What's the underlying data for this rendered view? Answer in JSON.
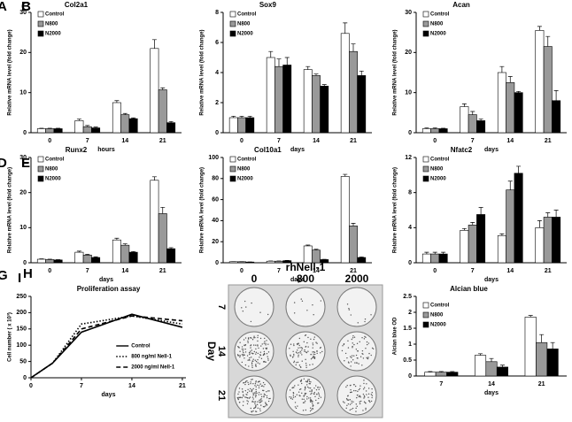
{
  "chart_data": [
    {
      "type": "bar",
      "label": "A",
      "title": "Col2a1",
      "xlabel": "hours",
      "ylabel": "Relative mRNA level (fold change)",
      "categories": [
        "0",
        "7",
        "14",
        "21"
      ],
      "ylim": [
        0,
        30
      ],
      "yticks": [
        0,
        10,
        20,
        30
      ],
      "series": [
        {
          "name": "Control",
          "color": "#ffffff",
          "values": [
            1,
            3,
            7.5,
            21
          ],
          "errors": [
            0.1,
            0.4,
            0.5,
            2.2
          ]
        },
        {
          "name": "N800",
          "color": "#999999",
          "values": [
            1,
            1.5,
            4.5,
            10.7
          ],
          "errors": [
            0.1,
            0.3,
            0.3,
            0.5
          ]
        },
        {
          "name": "N2000",
          "color": "#000000",
          "values": [
            1,
            1.2,
            3.5,
            2.5
          ],
          "errors": [
            0.1,
            0.2,
            0.2,
            0.3
          ]
        }
      ]
    },
    {
      "type": "bar",
      "label": "B",
      "title": "Sox9",
      "xlabel": "days",
      "ylabel": "Relative mRNA level (fold change)",
      "categories": [
        "0",
        "7",
        "14",
        "21"
      ],
      "ylim": [
        0,
        8
      ],
      "yticks": [
        0,
        2,
        4,
        6,
        8
      ],
      "series": [
        {
          "name": "Control",
          "color": "#ffffff",
          "values": [
            1,
            5,
            4.2,
            6.6
          ],
          "errors": [
            0.1,
            0.4,
            0.2,
            0.7
          ]
        },
        {
          "name": "N800",
          "color": "#999999",
          "values": [
            1,
            4.4,
            3.8,
            5.4
          ],
          "errors": [
            0.1,
            0.5,
            0.1,
            0.5
          ]
        },
        {
          "name": "N2000",
          "color": "#000000",
          "values": [
            1,
            4.5,
            3.1,
            3.8
          ],
          "errors": [
            0.1,
            0.5,
            0.1,
            0.3
          ]
        }
      ]
    },
    {
      "type": "bar",
      "label": "C",
      "title": "Acan",
      "xlabel": "days",
      "ylabel": "Relative mRNA level (fold change)",
      "categories": [
        "0",
        "7",
        "14",
        "21"
      ],
      "ylim": [
        0,
        30
      ],
      "yticks": [
        0,
        10,
        20,
        30
      ],
      "series": [
        {
          "name": "Control",
          "color": "#ffffff",
          "values": [
            1,
            6.5,
            15,
            25.5
          ],
          "errors": [
            0.2,
            0.7,
            1.5,
            1
          ]
        },
        {
          "name": "N800",
          "color": "#999999",
          "values": [
            1,
            4.5,
            12.5,
            21.5
          ],
          "errors": [
            0.2,
            0.8,
            1.5,
            2.5
          ]
        },
        {
          "name": "N2000",
          "color": "#000000",
          "values": [
            1,
            3,
            10,
            8
          ],
          "errors": [
            0.1,
            0.4,
            0.3,
            2.5
          ]
        }
      ]
    },
    {
      "type": "bar",
      "label": "D",
      "title": "Runx2",
      "xlabel": "days",
      "ylabel": "Relative mRNA level (fold change)",
      "categories": [
        "0",
        "7",
        "14",
        "21"
      ],
      "ylim": [
        0,
        30
      ],
      "yticks": [
        0,
        10,
        20,
        30
      ],
      "series": [
        {
          "name": "Control",
          "color": "#ffffff",
          "values": [
            1,
            3,
            6.5,
            23.5
          ],
          "errors": [
            0.1,
            0.3,
            0.5,
            1
          ]
        },
        {
          "name": "N800",
          "color": "#999999",
          "values": [
            0.9,
            2.2,
            5,
            14
          ],
          "errors": [
            0.1,
            0.2,
            0.4,
            1.8
          ]
        },
        {
          "name": "N2000",
          "color": "#000000",
          "values": [
            0.8,
            1.5,
            3,
            4
          ],
          "errors": [
            0.1,
            0.2,
            0.2,
            0.3
          ]
        }
      ]
    },
    {
      "type": "bar",
      "label": "E",
      "title": "Col10a1",
      "xlabel": "days",
      "ylabel": "Relative mRNA level (fold change)",
      "categories": [
        "0",
        "7",
        "14",
        "21"
      ],
      "ylim": [
        0,
        100
      ],
      "yticks": [
        0,
        20,
        40,
        60,
        80,
        100
      ],
      "series": [
        {
          "name": "Control",
          "color": "#ffffff",
          "values": [
            1,
            1.5,
            16,
            82
          ],
          "errors": [
            0.1,
            0.2,
            0.8,
            2
          ]
        },
        {
          "name": "N800",
          "color": "#999999",
          "values": [
            1,
            1.5,
            12,
            35
          ],
          "errors": [
            0.1,
            0.2,
            0.8,
            2.5
          ]
        },
        {
          "name": "N2000",
          "color": "#000000",
          "values": [
            0.7,
            2,
            3,
            5
          ],
          "errors": [
            0.1,
            0.2,
            0.3,
            0.5
          ]
        }
      ]
    },
    {
      "type": "bar",
      "label": "F",
      "title": "Nfatc2",
      "xlabel": "days",
      "ylabel": "Relative mRNA level (fold change)",
      "categories": [
        "0",
        "7",
        "14",
        "21"
      ],
      "ylim": [
        0,
        12
      ],
      "yticks": [
        0,
        4,
        8,
        12
      ],
      "series": [
        {
          "name": "Control",
          "color": "#ffffff",
          "values": [
            1,
            3.7,
            3.1,
            4
          ],
          "errors": [
            0.2,
            0.2,
            0.2,
            0.8
          ]
        },
        {
          "name": "N800",
          "color": "#999999",
          "values": [
            1,
            4.3,
            8.3,
            5.2
          ],
          "errors": [
            0.2,
            0.3,
            1,
            0.5
          ]
        },
        {
          "name": "N2000",
          "color": "#000000",
          "values": [
            1,
            5.5,
            10.2,
            5.2
          ],
          "errors": [
            0.2,
            0.8,
            0.8,
            0.8
          ]
        }
      ]
    },
    {
      "type": "line",
      "label": "G",
      "title": "Proliferation assay",
      "xlabel": "days",
      "ylabel": "Cell number ( x 10³)",
      "x": [
        0,
        3,
        7,
        14,
        21
      ],
      "xlim": [
        0,
        21.5
      ],
      "xticks": [
        0,
        7,
        14,
        21
      ],
      "ylim": [
        0,
        250
      ],
      "yticks": [
        0,
        50,
        100,
        150,
        200,
        250
      ],
      "series": [
        {
          "name": "Control",
          "color": "#000000",
          "style": "solid",
          "values": [
            0,
            45,
            140,
            195,
            155
          ]
        },
        {
          "name": "800 ng/ml Nell-1",
          "color": "#000000",
          "style": "dotted",
          "values": [
            0,
            45,
            165,
            190,
            165
          ]
        },
        {
          "name": "2000 ng/ml Nell-1",
          "color": "#000000",
          "style": "dashed",
          "values": [
            0,
            45,
            150,
            190,
            175
          ]
        }
      ]
    },
    {
      "type": "image",
      "label": "H",
      "title": "rhNell-1",
      "columns": [
        "0",
        "800",
        "2000"
      ],
      "rows": [
        "7",
        "14",
        "21"
      ],
      "row_title": "Day"
    },
    {
      "type": "bar",
      "label": "I",
      "title": "Alcian blue",
      "xlabel": "days",
      "ylabel": "Alcian blue OD",
      "categories": [
        "7",
        "14",
        "21"
      ],
      "ylim": [
        0,
        2.5
      ],
      "yticks": [
        0,
        0.5,
        1,
        1.5,
        2,
        2.5
      ],
      "series": [
        {
          "name": "Control",
          "color": "#ffffff",
          "values": [
            0.12,
            0.65,
            1.85
          ],
          "errors": [
            0.02,
            0.05,
            0.05
          ]
        },
        {
          "name": "N800",
          "color": "#999999",
          "values": [
            0.12,
            0.45,
            1.05
          ],
          "errors": [
            0.02,
            0.1,
            0.25
          ]
        },
        {
          "name": "N2000",
          "color": "#000000",
          "values": [
            0.12,
            0.28,
            0.85
          ],
          "errors": [
            0.02,
            0.06,
            0.2
          ]
        }
      ]
    }
  ]
}
